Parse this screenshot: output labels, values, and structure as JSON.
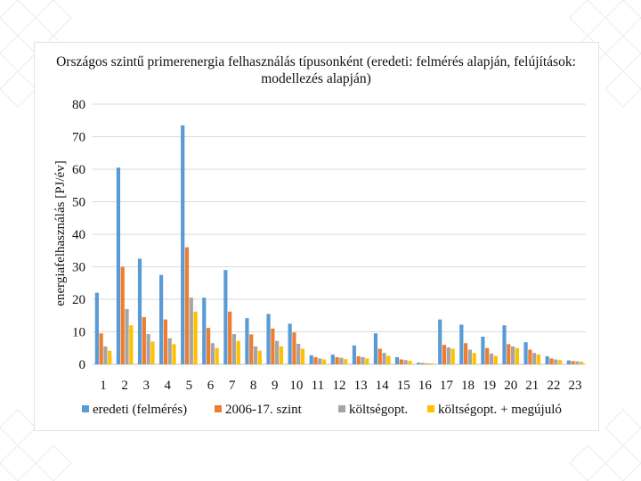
{
  "chart_data": {
    "type": "bar",
    "title": "Országos szintű primerenergia felhasználás típusonként (eredeti: felmérés alapján, felújítások: modellezés alapján)",
    "ylabel": "energiafelhasználás [PJ/év]",
    "xlabel": "",
    "ylim": [
      0,
      80
    ],
    "yticks": [
      "0",
      "10",
      "20",
      "30",
      "40",
      "50",
      "60",
      "70",
      "80"
    ],
    "grid": true,
    "legend_position": "bottom",
    "categories": [
      "1",
      "2",
      "3",
      "4",
      "5",
      "6",
      "7",
      "8",
      "9",
      "10",
      "11",
      "12",
      "13",
      "14",
      "15",
      "16",
      "17",
      "18",
      "19",
      "20",
      "21",
      "22",
      "23"
    ],
    "series": [
      {
        "name": "eredeti (felmérés)",
        "color": "#5b9bd5",
        "values": [
          22,
          60.5,
          32.5,
          27.5,
          73.5,
          20.5,
          29,
          14.2,
          15.5,
          12.5,
          2.8,
          3,
          5.8,
          9.5,
          2.2,
          0.5,
          13.8,
          12.2,
          8.5,
          12,
          6.8,
          2.5,
          1.2
        ]
      },
      {
        "name": "2006-17. szint",
        "color": "#ed7d31",
        "values": [
          9.5,
          30,
          14.5,
          13.8,
          36,
          11.2,
          16.2,
          9.2,
          11,
          9.8,
          2.2,
          2.2,
          2.5,
          4.8,
          1.5,
          0.4,
          6,
          6.5,
          5,
          6.2,
          4.5,
          1.8,
          1
        ]
      },
      {
        "name": "költségopt.",
        "color": "#a5a5a5",
        "values": [
          5.5,
          17,
          9.3,
          8,
          20.5,
          6.5,
          9.3,
          5.5,
          7.2,
          6.3,
          1.8,
          2,
          2.2,
          3.5,
          1.3,
          0.3,
          5.2,
          4.5,
          3.3,
          5.5,
          3.5,
          1.5,
          0.9
        ]
      },
      {
        "name": "költségopt. + megújuló",
        "color": "#ffc000",
        "values": [
          4.2,
          12,
          7,
          6.2,
          16.2,
          5,
          7.2,
          4.2,
          5.5,
          4.8,
          1.5,
          1.6,
          1.8,
          2.6,
          1.1,
          0.3,
          4.8,
          3.5,
          2.6,
          5,
          3,
          1.3,
          0.8
        ]
      }
    ]
  }
}
